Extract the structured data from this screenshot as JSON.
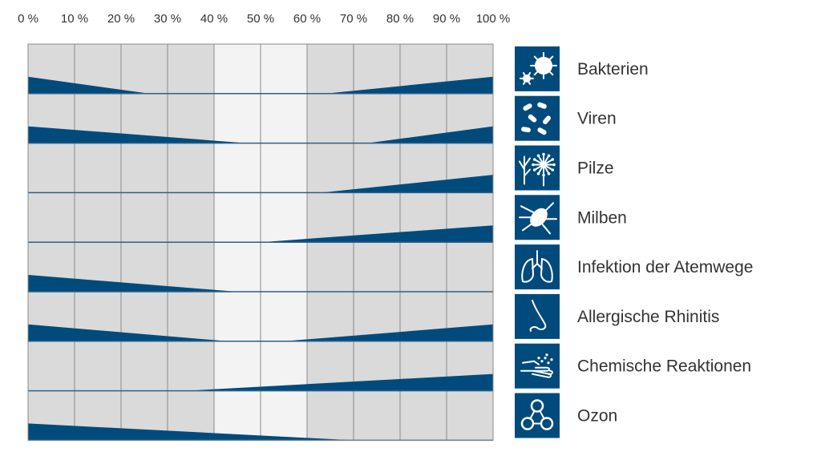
{
  "chart_data": {
    "type": "area",
    "x_ticks": [
      "0 %",
      "10 %",
      "20 %",
      "30 %",
      "40 %",
      "50 %",
      "60 %",
      "70 %",
      "80 %",
      "90 %",
      "100 %"
    ],
    "xlim": [
      0,
      100
    ],
    "ylim": [
      0,
      1
    ],
    "highlight_range": [
      40,
      60
    ],
    "colors": {
      "wedge": "#004b7c",
      "icon_bg": "#004b7c",
      "cell_bg": "#dadada",
      "highlight_bg": "#f3f3f3",
      "grid": "#8a8a8a",
      "separator": "#2f5f8a",
      "text": "#333333"
    },
    "rows": [
      {
        "label": "Bakterien",
        "icon": "bacteria-icon",
        "left": {
          "from": 0,
          "to": 26,
          "height": 0.34
        },
        "right": {
          "from": 64,
          "to": 100,
          "height": 0.34
        }
      },
      {
        "label": "Viren",
        "icon": "virus-icon",
        "left": {
          "from": 0,
          "to": 47,
          "height": 0.34
        },
        "right": {
          "from": 73,
          "to": 100,
          "height": 0.34
        }
      },
      {
        "label": "Pilze",
        "icon": "fungi-icon",
        "left": null,
        "right": {
          "from": 63,
          "to": 100,
          "height": 0.36
        }
      },
      {
        "label": "Milben",
        "icon": "mite-icon",
        "left": null,
        "right": {
          "from": 50,
          "to": 100,
          "height": 0.34
        }
      },
      {
        "label": "Infektion der Atemwege",
        "icon": "lungs-icon",
        "left": {
          "from": 0,
          "to": 45,
          "height": 0.34
        },
        "right": null
      },
      {
        "label": "Allergische Rhinitis",
        "icon": "nose-icon",
        "left": {
          "from": 0,
          "to": 43,
          "height": 0.34
        },
        "right": {
          "from": 55,
          "to": 100,
          "height": 0.34
        }
      },
      {
        "label": "Chemische Reaktionen",
        "icon": "hand-icon",
        "left": null,
        "right": {
          "from": 34,
          "to": 100,
          "height": 0.34
        }
      },
      {
        "label": "Ozon",
        "icon": "ozone-molecule-icon",
        "left": {
          "from": 0,
          "to": 70,
          "height": 0.34
        },
        "right": null
      }
    ]
  }
}
